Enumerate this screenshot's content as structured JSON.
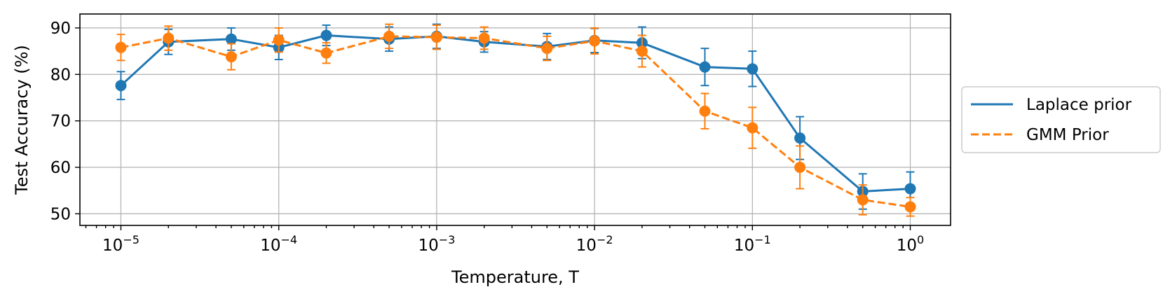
{
  "chart_data": {
    "type": "line",
    "title": "",
    "xlabel": "Temperature, T",
    "ylabel": "Test Accuracy (%)",
    "xscale": "log",
    "xlim": [
      5.5e-06,
      1.8
    ],
    "ylim": [
      47.5,
      93
    ],
    "grid": true,
    "legend_position": "outside-right",
    "x": [
      1e-05,
      2e-05,
      5e-05,
      0.0001,
      0.0002,
      0.0005,
      0.001,
      0.002,
      0.005,
      0.01,
      0.02,
      0.05,
      0.1,
      0.2,
      0.5,
      1.0
    ],
    "x_ticks": [
      {
        "value": 1e-05,
        "base": "10",
        "exp": "−5"
      },
      {
        "value": 0.0001,
        "base": "10",
        "exp": "−4"
      },
      {
        "value": 0.001,
        "base": "10",
        "exp": "−3"
      },
      {
        "value": 0.01,
        "base": "10",
        "exp": "−2"
      },
      {
        "value": 0.1,
        "base": "10",
        "exp": "−1"
      },
      {
        "value": 1,
        "base": "10",
        "exp": "0"
      }
    ],
    "y_ticks": [
      50,
      60,
      70,
      80,
      90
    ],
    "series": [
      {
        "name": "Laplace prior",
        "color": "#1f77b4",
        "linestyle": "solid",
        "values": [
          77.6,
          87.0,
          87.6,
          85.8,
          88.4,
          87.6,
          88.2,
          87.0,
          86.0,
          87.3,
          86.8,
          81.6,
          81.2,
          66.3,
          54.8,
          55.4
        ],
        "errors": [
          3.0,
          2.7,
          2.4,
          2.6,
          2.2,
          2.6,
          2.6,
          2.2,
          2.8,
          2.6,
          3.4,
          4.0,
          3.8,
          4.6,
          3.8,
          3.6
        ]
      },
      {
        "name": "GMM Prior",
        "color": "#ff7f0e",
        "linestyle": "dashed",
        "values": [
          85.8,
          87.8,
          83.8,
          87.4,
          84.6,
          88.2,
          88.0,
          87.8,
          85.6,
          87.2,
          85.0,
          72.1,
          68.5,
          60.0,
          53.0,
          51.5
        ],
        "errors": [
          2.8,
          2.6,
          2.8,
          2.6,
          2.2,
          2.6,
          2.6,
          2.4,
          2.6,
          2.8,
          3.4,
          3.8,
          4.4,
          4.6,
          3.2,
          2.0
        ]
      }
    ]
  }
}
